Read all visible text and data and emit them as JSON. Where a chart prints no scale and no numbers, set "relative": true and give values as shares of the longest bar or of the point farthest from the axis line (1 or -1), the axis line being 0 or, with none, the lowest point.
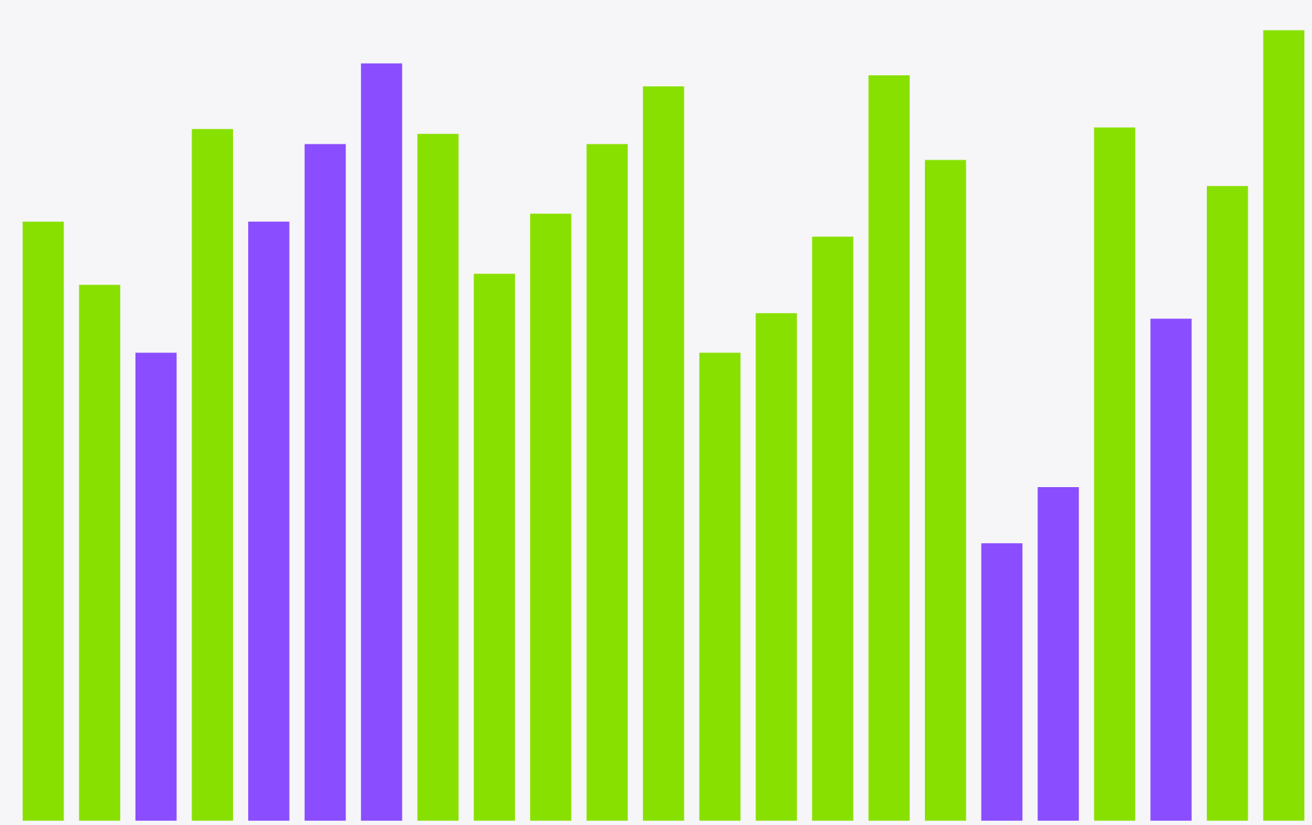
{
  "chart_data": {
    "type": "bar",
    "relative": true,
    "categories": [
      null,
      null,
      null,
      null,
      null,
      null,
      null,
      null,
      null,
      null,
      null,
      null,
      null,
      null,
      null,
      null,
      null,
      null,
      null,
      null,
      null,
      null,
      null
    ],
    "values": [
      0.758,
      0.678,
      0.592,
      0.875,
      0.758,
      0.856,
      0.958,
      0.869,
      0.692,
      0.768,
      0.856,
      0.929,
      0.592,
      0.642,
      0.739,
      0.943,
      0.836,
      0.351,
      0.422,
      0.877,
      0.635,
      0.803,
      1
    ],
    "colors": [
      "#88e000",
      "#88e000",
      "#8a4dff",
      "#88e000",
      "#8a4dff",
      "#8a4dff",
      "#8a4dff",
      "#88e000",
      "#88e000",
      "#88e000",
      "#88e000",
      "#88e000",
      "#88e000",
      "#88e000",
      "#88e000",
      "#88e000",
      "#88e000",
      "#8a4dff",
      "#8a4dff",
      "#88e000",
      "#8a4dff",
      "#88e000",
      "#88e000"
    ],
    "orientation": "vertical"
  }
}
